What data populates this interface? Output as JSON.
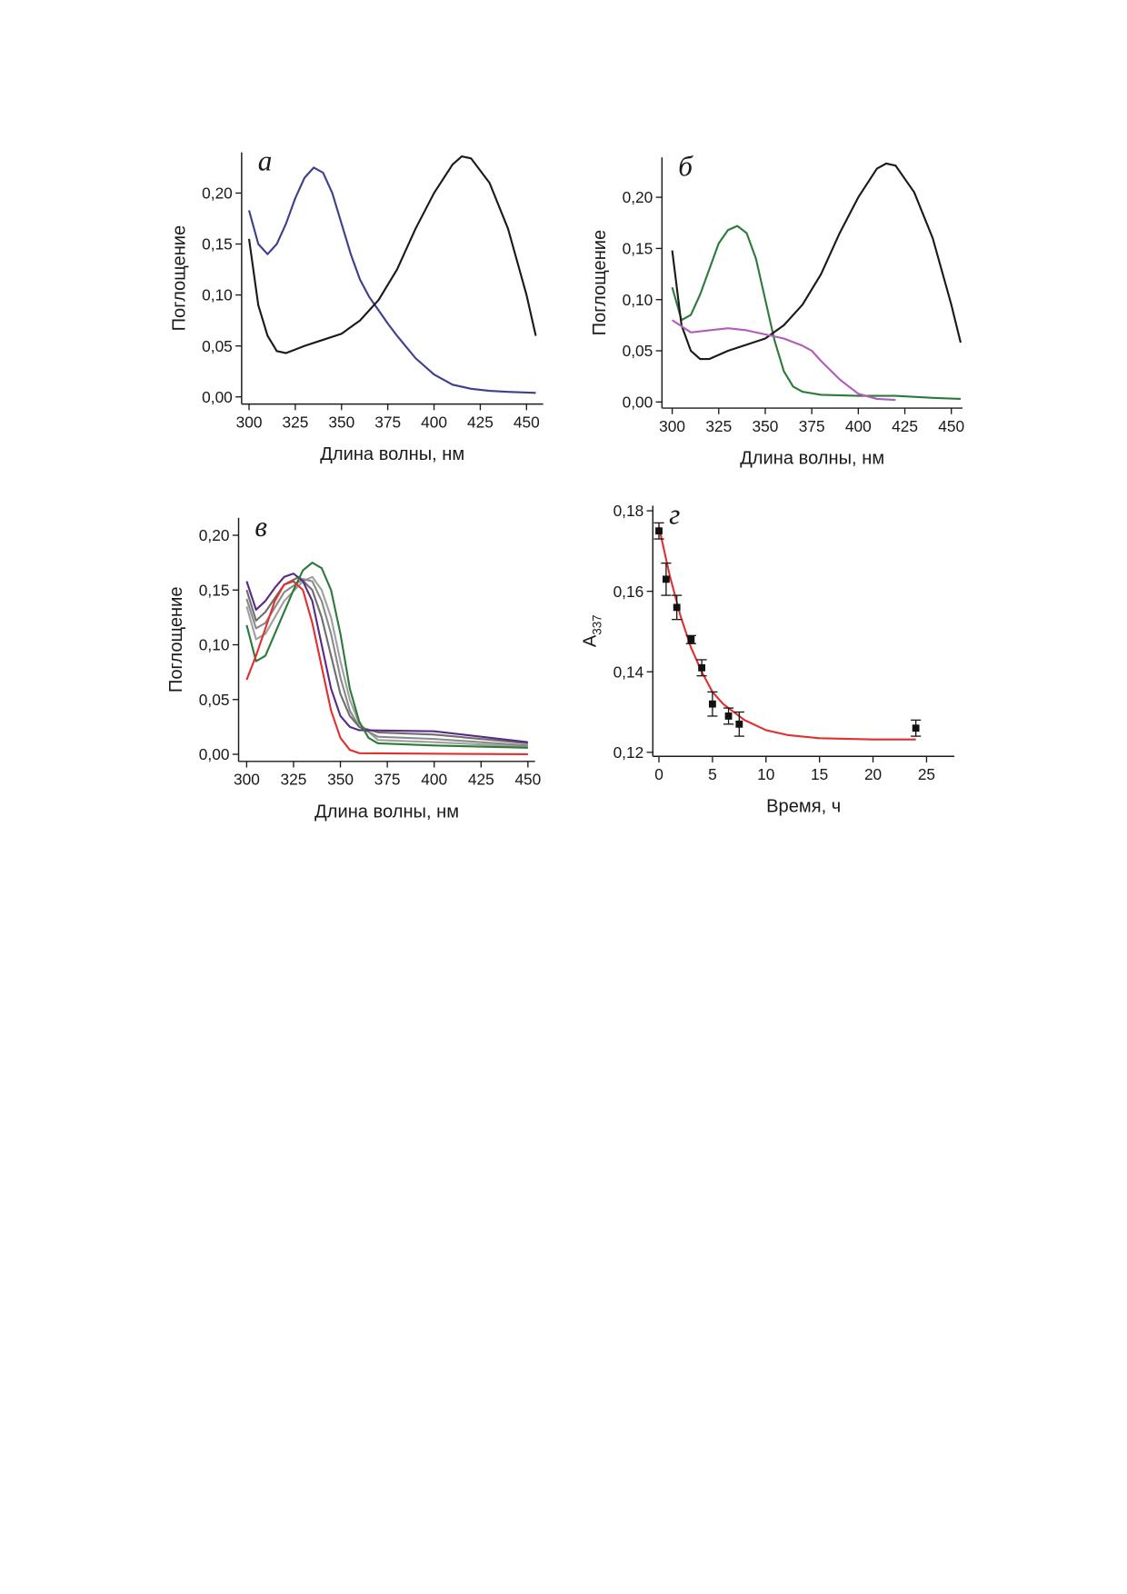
{
  "chart_data": [
    {
      "type": "line",
      "panel_label": "а",
      "x_label": "Длина волны, нм",
      "y_label": "Поглощение",
      "xlim": [
        296,
        459
      ],
      "ylim": [
        -0.007,
        0.24
      ],
      "xticks": [
        300,
        325,
        350,
        375,
        400,
        425,
        450
      ],
      "yticks": [
        {
          "value": 0,
          "label": "0,00"
        },
        {
          "value": 0.05,
          "label": "0,05"
        },
        {
          "value": 0.1,
          "label": "0,10"
        },
        {
          "value": 0.15,
          "label": "0,15"
        },
        {
          "value": 0.2,
          "label": "0,20"
        }
      ],
      "series": [
        {
          "color": "#3c3f8c",
          "x": [
            300,
            305,
            310,
            315,
            320,
            325,
            330,
            335,
            340,
            345,
            350,
            355,
            360,
            365,
            370,
            375,
            380,
            390,
            400,
            410,
            420,
            430,
            440,
            455
          ],
          "values": [
            0.183,
            0.15,
            0.14,
            0.15,
            0.17,
            0.195,
            0.215,
            0.225,
            0.22,
            0.2,
            0.17,
            0.14,
            0.115,
            0.098,
            0.085,
            0.072,
            0.06,
            0.038,
            0.022,
            0.012,
            0.008,
            0.006,
            0.005,
            0.004
          ]
        },
        {
          "color": "#1a1a1a",
          "x": [
            300,
            305,
            310,
            315,
            320,
            330,
            340,
            350,
            360,
            370,
            380,
            390,
            400,
            410,
            415,
            420,
            430,
            440,
            450,
            455
          ],
          "values": [
            0.155,
            0.09,
            0.06,
            0.045,
            0.043,
            0.05,
            0.056,
            0.062,
            0.075,
            0.095,
            0.125,
            0.165,
            0.2,
            0.228,
            0.236,
            0.234,
            0.21,
            0.165,
            0.1,
            0.06
          ]
        }
      ]
    },
    {
      "type": "line",
      "panel_label": "б",
      "x_label": "Длина волны, нм",
      "y_label": "Поглощение",
      "xlim": [
        294.5,
        456
      ],
      "ylim": [
        -0.006,
        0.239
      ],
      "xticks": [
        300,
        325,
        350,
        375,
        400,
        425,
        450
      ],
      "yticks": [
        {
          "value": 0,
          "label": "0,00"
        },
        {
          "value": 0.05,
          "label": "0,05"
        },
        {
          "value": 0.1,
          "label": "0,10"
        },
        {
          "value": 0.15,
          "label": "0,15"
        },
        {
          "value": 0.2,
          "label": "0,20"
        }
      ],
      "series": [
        {
          "color": "#2d7a3a",
          "x": [
            300,
            305,
            310,
            315,
            320,
            325,
            330,
            335,
            340,
            345,
            350,
            355,
            360,
            365,
            370,
            380,
            400,
            420,
            440,
            455
          ],
          "values": [
            0.112,
            0.08,
            0.085,
            0.105,
            0.13,
            0.155,
            0.168,
            0.172,
            0.165,
            0.14,
            0.1,
            0.06,
            0.03,
            0.015,
            0.01,
            0.007,
            0.006,
            0.006,
            0.004,
            0.003
          ]
        },
        {
          "color": "#1a1a1a",
          "x": [
            300,
            305,
            310,
            315,
            320,
            330,
            340,
            350,
            360,
            370,
            380,
            390,
            400,
            410,
            415,
            420,
            430,
            440,
            450,
            455
          ],
          "values": [
            0.148,
            0.075,
            0.05,
            0.042,
            0.042,
            0.05,
            0.056,
            0.062,
            0.075,
            0.095,
            0.125,
            0.165,
            0.2,
            0.228,
            0.233,
            0.231,
            0.205,
            0.16,
            0.095,
            0.058
          ]
        },
        {
          "color": "#b05cb8",
          "x": [
            300,
            310,
            320,
            330,
            340,
            350,
            360,
            370,
            375,
            380,
            390,
            400,
            410,
            420
          ],
          "values": [
            0.08,
            0.068,
            0.07,
            0.072,
            0.07,
            0.066,
            0.062,
            0.055,
            0.05,
            0.04,
            0.022,
            0.008,
            0.003,
            0.002
          ]
        }
      ]
    },
    {
      "type": "line",
      "panel_label": "в",
      "x_label": "Длина волны, нм",
      "y_label": "Поглощение",
      "xlim": [
        295.7,
        453.8
      ],
      "ylim": [
        -0.0065,
        0.216
      ],
      "xticks": [
        300,
        325,
        350,
        375,
        400,
        425,
        450
      ],
      "yticks": [
        {
          "value": 0,
          "label": "0,00"
        },
        {
          "value": 0.05,
          "label": "0,05"
        },
        {
          "value": 0.1,
          "label": "0,10"
        },
        {
          "value": 0.15,
          "label": "0,15"
        },
        {
          "value": 0.2,
          "label": "0,20"
        }
      ],
      "series": [
        {
          "color": "#a0a0a0",
          "x": [
            300,
            305,
            310,
            320,
            330,
            335,
            340,
            345,
            350,
            355,
            360,
            370,
            400,
            450
          ],
          "values": [
            0.135,
            0.105,
            0.11,
            0.14,
            0.158,
            0.162,
            0.15,
            0.125,
            0.085,
            0.05,
            0.028,
            0.013,
            0.011,
            0.007
          ]
        },
        {
          "color": "#8a8a8a",
          "x": [
            300,
            305,
            310,
            320,
            330,
            335,
            340,
            345,
            350,
            355,
            360,
            370,
            400,
            450
          ],
          "values": [
            0.142,
            0.115,
            0.12,
            0.148,
            0.16,
            0.158,
            0.14,
            0.11,
            0.07,
            0.04,
            0.025,
            0.016,
            0.014,
            0.008
          ]
        },
        {
          "color": "#6e6e6e",
          "x": [
            300,
            305,
            310,
            320,
            328,
            335,
            340,
            345,
            350,
            355,
            360,
            370,
            400,
            450
          ],
          "values": [
            0.15,
            0.122,
            0.13,
            0.155,
            0.162,
            0.15,
            0.125,
            0.09,
            0.055,
            0.035,
            0.025,
            0.02,
            0.018,
            0.01
          ]
        },
        {
          "color": "#5b2a86",
          "x": [
            300,
            305,
            310,
            315,
            320,
            325,
            330,
            335,
            340,
            345,
            350,
            355,
            360,
            400,
            450
          ],
          "values": [
            0.158,
            0.132,
            0.14,
            0.152,
            0.162,
            0.165,
            0.158,
            0.14,
            0.1,
            0.06,
            0.035,
            0.025,
            0.022,
            0.021,
            0.011
          ]
        },
        {
          "color": "#2d7a3a",
          "x": [
            300,
            305,
            310,
            315,
            320,
            325,
            330,
            335,
            340,
            345,
            350,
            355,
            360,
            365,
            370,
            400,
            450
          ],
          "values": [
            0.118,
            0.085,
            0.09,
            0.11,
            0.13,
            0.15,
            0.168,
            0.175,
            0.17,
            0.15,
            0.11,
            0.06,
            0.03,
            0.015,
            0.01,
            0.008,
            0.006
          ]
        },
        {
          "color": "#e03030",
          "x": [
            300,
            305,
            310,
            315,
            320,
            325,
            330,
            335,
            340,
            345,
            350,
            355,
            360,
            450
          ],
          "values": [
            0.068,
            0.09,
            0.115,
            0.14,
            0.155,
            0.158,
            0.15,
            0.12,
            0.08,
            0.04,
            0.015,
            0.004,
            0.001,
            0
          ]
        }
      ]
    },
    {
      "type": "scatter",
      "panel_label": "г",
      "x_label": "Время, ч",
      "y_label": "A",
      "y_label_sub": "337",
      "xlim": [
        -0.57,
        27.6
      ],
      "ylim": [
        0.119,
        0.1813
      ],
      "xticks": [
        0,
        5,
        10,
        15,
        20,
        25
      ],
      "yticks": [
        {
          "value": 0.12,
          "label": "0,12"
        },
        {
          "value": 0.14,
          "label": "0,14"
        },
        {
          "value": 0.16,
          "label": "0,16"
        },
        {
          "value": 0.18,
          "label": "0,18"
        }
      ],
      "series": [
        {
          "type": "line",
          "color": "#e03030",
          "x": [
            0,
            1,
            2,
            3,
            4,
            5,
            6,
            8,
            10,
            12,
            15,
            20,
            24
          ],
          "values": [
            0.176,
            0.164,
            0.154,
            0.146,
            0.14,
            0.135,
            0.132,
            0.128,
            0.1255,
            0.1243,
            0.1235,
            0.1232,
            0.1232
          ]
        },
        {
          "type": "scatter",
          "color": "#111111",
          "x": [
            0,
            0.67,
            1.67,
            3,
            4,
            5,
            6.5,
            7.5,
            24
          ],
          "values": [
            0.175,
            0.163,
            0.156,
            0.148,
            0.141,
            0.132,
            0.129,
            0.127,
            0.126
          ],
          "errors": [
            0.002,
            0.004,
            0.003,
            0.001,
            0.002,
            0.003,
            0.002,
            0.003,
            0.002
          ]
        }
      ]
    }
  ]
}
